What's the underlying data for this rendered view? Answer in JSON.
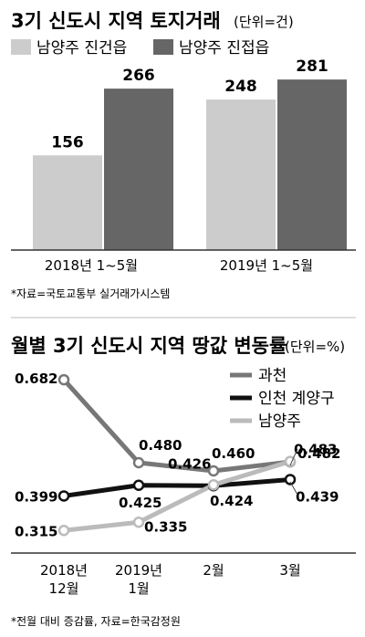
{
  "chart_data": [
    {
      "type": "bar",
      "title": "3기 신도시 지역 토지거래",
      "unit": "(단위=건)",
      "categories": [
        "2018년 1~5월",
        "2019년 1~5월"
      ],
      "series": [
        {
          "name": "남양주 진건읍",
          "color": "#cccccc",
          "values": [
            156,
            248
          ]
        },
        {
          "name": "남양주 진접읍",
          "color": "#666666",
          "values": [
            266,
            281
          ]
        }
      ],
      "ylim": [
        0,
        300
      ],
      "legend": "top-left",
      "source": "*자료=국토교통부 실거래가시스템"
    },
    {
      "type": "line",
      "title": "월별 3기 신도시 지역 땅값 변동률",
      "unit": "(단위=%)",
      "x": [
        "2018년\n12월",
        "2019년\n1월",
        "2월",
        "3월"
      ],
      "series": [
        {
          "name": "과천",
          "color": "#777777",
          "values": [
            0.682,
            0.48,
            0.46,
            0.482
          ],
          "labels": [
            "0.682",
            "0.480",
            "0.460",
            "0.482"
          ]
        },
        {
          "name": "인천 계양구",
          "color": "#111111",
          "values": [
            0.399,
            0.425,
            0.424,
            0.439
          ],
          "labels": [
            "0.399",
            "0.425",
            "0.424",
            "0.439"
          ]
        },
        {
          "name": "남양주",
          "color": "#bbbbbb",
          "values": [
            0.315,
            0.335,
            0.426,
            0.483
          ],
          "labels": [
            "0.315",
            "0.335",
            "0.426",
            "0.483"
          ]
        }
      ],
      "legend": "top-right",
      "source": "*전월 대비 증감률, 자료=한국감정원"
    }
  ]
}
